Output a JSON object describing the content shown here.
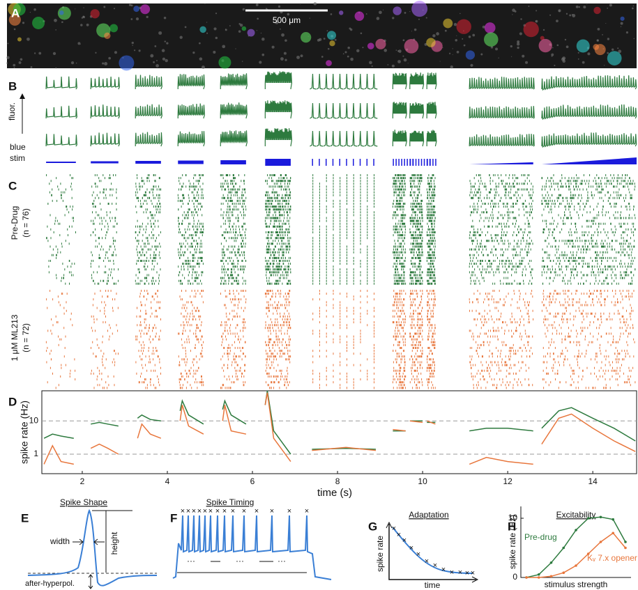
{
  "panels": {
    "A": {
      "label": "A",
      "scale_bar": "500 μm"
    },
    "B": {
      "label": "B",
      "y_label": "fluor.",
      "stim_label": [
        "blue",
        "stim"
      ]
    },
    "C": {
      "label": "C",
      "groups": [
        [
          "Pre-Drug",
          "(n = 76)"
        ],
        [
          "1 μM ML213",
          "(n = 72)"
        ]
      ]
    },
    "E": {
      "label": "E",
      "title": "Spike Shape",
      "width": "width",
      "height": "height",
      "ahp": "after-hyperpol."
    },
    "F": {
      "label": "F",
      "title": "Spike Timing",
      "dots": "···"
    },
    "G": {
      "label": "G",
      "title": "Adaptation",
      "y_label": "spike rate",
      "x_label": "time"
    }
  },
  "chart_data": [
    {
      "type": "line",
      "label": "D",
      "y_label": "spike rate (Hz)",
      "x_label": "time (s)",
      "log_y": true,
      "grid": true,
      "x": [
        1.1,
        1.3,
        1.5,
        1.8,
        2.0,
        2.2,
        2.4,
        2.6,
        2.85,
        3.0,
        3.3,
        3.4,
        3.6,
        3.85,
        4.0,
        4.3,
        4.35,
        4.5,
        4.85,
        5.0,
        5.3,
        5.35,
        5.5,
        5.85,
        6.0,
        6.3,
        6.35,
        6.5,
        6.9,
        7.1,
        7.4,
        8.2,
        8.9,
        9.1,
        9.3,
        9.6,
        9.65,
        9.7,
        10.0,
        10.05,
        10.1,
        10.3,
        10.6,
        11.1,
        11.5,
        12.0,
        12.6,
        12.7,
        12.8,
        13.2,
        13.5,
        14.0,
        14.5,
        15.0
      ],
      "series": [
        {
          "color": "#2d7a3e",
          "values": [
            3,
            4,
            3.5,
            3,
            null,
            8,
            9,
            8,
            7,
            null,
            12,
            15,
            11,
            10,
            null,
            20,
            40,
            15,
            8,
            null,
            22,
            40,
            15,
            8,
            null,
            30,
            80,
            5,
            1,
            null,
            1.4,
            1.5,
            1.4,
            null,
            5,
            5,
            null,
            10,
            10,
            null,
            9,
            9,
            null,
            5,
            6,
            6,
            5,
            null,
            6,
            20,
            25,
            12,
            6,
            2.5
          ]
        },
        {
          "color": "#e8763c",
          "values": [
            0.5,
            1.8,
            0.6,
            0.5,
            null,
            1.5,
            2,
            1.5,
            1,
            null,
            3,
            8,
            4,
            3,
            null,
            10,
            30,
            7,
            4,
            null,
            10,
            30,
            5,
            4,
            null,
            30,
            70,
            3,
            0.6,
            null,
            1.3,
            1.6,
            1.3,
            null,
            5.5,
            5,
            null,
            10,
            9,
            null,
            10,
            8,
            null,
            0.5,
            0.8,
            0.6,
            0.5,
            null,
            2,
            12,
            16,
            6,
            2.5,
            1.2
          ]
        }
      ],
      "xlim": [
        1.05,
        15.03
      ],
      "ylim": [
        0.26,
        80
      ],
      "xticks": [
        2,
        4,
        6,
        8,
        10,
        12,
        14
      ],
      "yticks": [
        1,
        10
      ]
    },
    {
      "type": "line",
      "label": "H",
      "title": "Excitability",
      "y_label": "spike rate (Hz)",
      "x_label": "stimulus strength",
      "markers": true,
      "categories": [
        null,
        null,
        null,
        null,
        null,
        null,
        null,
        null,
        null
      ],
      "series": [
        {
          "name": "Pre-drug",
          "color": "#2d7a3e",
          "values": [
            0,
            0.5,
            2.5,
            5,
            8,
            10,
            10.2,
            9.8,
            6
          ]
        },
        {
          "name": "Kᵥ 7.x opener",
          "color": "#e8763c",
          "values": [
            0,
            0,
            0.2,
            0.8,
            2,
            4,
            6,
            7.5,
            5
          ]
        }
      ],
      "ylim": [
        0,
        12
      ],
      "yticks": [
        0,
        10
      ]
    }
  ]
}
